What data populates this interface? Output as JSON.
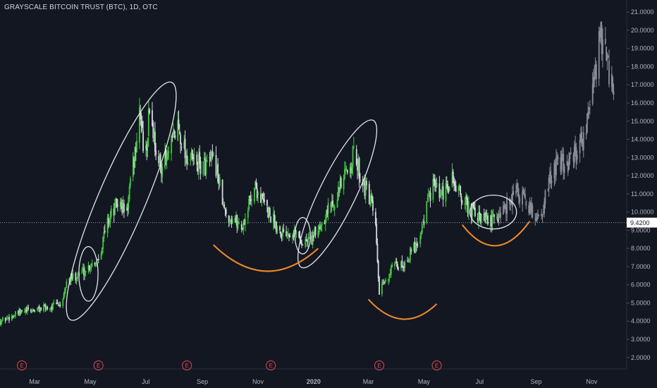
{
  "title": "GRAYSCALE BITCOIN TRUST (BTC), 1D, OTC",
  "chart_data": {
    "type": "candlestick",
    "symbol": "GRAYSCALE BITCOIN TRUST (BTC)",
    "interval": "1D",
    "exchange": "OTC",
    "ylim": [
      1.2,
      21.6
    ],
    "y_ticks": [
      {
        "value": 2,
        "label": "2.0000"
      },
      {
        "value": 3,
        "label": "3.0000"
      },
      {
        "value": 4,
        "label": "4.0000"
      },
      {
        "value": 5,
        "label": "5.0000"
      },
      {
        "value": 6,
        "label": "6.0000"
      },
      {
        "value": 7,
        "label": "7.0000"
      },
      {
        "value": 8,
        "label": "8.0000"
      },
      {
        "value": 9,
        "label": "9.0000"
      },
      {
        "value": 10,
        "label": "10.0000"
      },
      {
        "value": 11,
        "label": "11.0000"
      },
      {
        "value": 12,
        "label": "12.0000"
      },
      {
        "value": 13,
        "label": "13.0000"
      },
      {
        "value": 14,
        "label": "14.0000"
      },
      {
        "value": 15,
        "label": "15.0000"
      },
      {
        "value": 16,
        "label": "16.0000"
      },
      {
        "value": 17,
        "label": "17.0000"
      },
      {
        "value": 18,
        "label": "18.0000"
      },
      {
        "value": 19,
        "label": "19.0000"
      },
      {
        "value": 20,
        "label": "20.0000"
      },
      {
        "value": 21,
        "label": "21.0000"
      }
    ],
    "x_ticks": [
      {
        "label": "Mar",
        "date": "2019-03-01"
      },
      {
        "label": "May",
        "date": "2019-05-01"
      },
      {
        "label": "Jul",
        "date": "2019-07-01"
      },
      {
        "label": "Sep",
        "date": "2019-09-01"
      },
      {
        "label": "Nov",
        "date": "2019-11-01"
      },
      {
        "label": "2020",
        "date": "2020-01-01"
      },
      {
        "label": "Mar",
        "date": "2020-03-01"
      },
      {
        "label": "May",
        "date": "2020-05-01"
      },
      {
        "label": "Jul",
        "date": "2020-07-01"
      },
      {
        "label": "Sep",
        "date": "2020-09-01"
      },
      {
        "label": "Nov",
        "date": "2020-11-01"
      }
    ],
    "current_price": {
      "value": 9.42,
      "label": "9.4200"
    },
    "earnings_markers": [
      {
        "label": "E",
        "date": "2019-02-15"
      },
      {
        "label": "E",
        "date": "2019-05-10"
      },
      {
        "label": "E",
        "date": "2019-08-15"
      },
      {
        "label": "E",
        "date": "2019-11-15"
      },
      {
        "label": "E",
        "date": "2020-03-13"
      },
      {
        "label": "E",
        "date": "2020-05-15"
      }
    ],
    "price_path": [
      {
        "date": "2019-01-22",
        "price": 4.0
      },
      {
        "date": "2019-02-15",
        "price": 4.5
      },
      {
        "date": "2019-03-20",
        "price": 4.8
      },
      {
        "date": "2019-04-01",
        "price": 5.0
      },
      {
        "date": "2019-04-05",
        "price": 6.2
      },
      {
        "date": "2019-04-25",
        "price": 6.8
      },
      {
        "date": "2019-05-10",
        "price": 7.5
      },
      {
        "date": "2019-05-20",
        "price": 9.5
      },
      {
        "date": "2019-05-31",
        "price": 10.5
      },
      {
        "date": "2019-06-10",
        "price": 10.0
      },
      {
        "date": "2019-06-25",
        "price": 15.5
      },
      {
        "date": "2019-06-30",
        "price": 12.5
      },
      {
        "date": "2019-07-05",
        "price": 15.8
      },
      {
        "date": "2019-07-15",
        "price": 12.5
      },
      {
        "date": "2019-07-25",
        "price": 13.0
      },
      {
        "date": "2019-08-05",
        "price": 14.8
      },
      {
        "date": "2019-08-15",
        "price": 13.0
      },
      {
        "date": "2019-09-01",
        "price": 12.5
      },
      {
        "date": "2019-09-15",
        "price": 12.8
      },
      {
        "date": "2019-09-25",
        "price": 10.0
      },
      {
        "date": "2019-10-15",
        "price": 9.2
      },
      {
        "date": "2019-10-28",
        "price": 11.5
      },
      {
        "date": "2019-11-10",
        "price": 10.2
      },
      {
        "date": "2019-11-25",
        "price": 9.0
      },
      {
        "date": "2019-12-10",
        "price": 9.0
      },
      {
        "date": "2019-12-20",
        "price": 8.3
      },
      {
        "date": "2020-01-01",
        "price": 8.6
      },
      {
        "date": "2020-01-15",
        "price": 10.0
      },
      {
        "date": "2020-02-01",
        "price": 11.5
      },
      {
        "date": "2020-02-14",
        "price": 13.2
      },
      {
        "date": "2020-02-25",
        "price": 11.5
      },
      {
        "date": "2020-03-05",
        "price": 10.3
      },
      {
        "date": "2020-03-09",
        "price": 9.0
      },
      {
        "date": "2020-03-13",
        "price": 5.5
      },
      {
        "date": "2020-03-25",
        "price": 6.8
      },
      {
        "date": "2020-04-10",
        "price": 7.2
      },
      {
        "date": "2020-04-25",
        "price": 8.5
      },
      {
        "date": "2020-05-10",
        "price": 11.5
      },
      {
        "date": "2020-05-20",
        "price": 10.8
      },
      {
        "date": "2020-06-01",
        "price": 11.8
      },
      {
        "date": "2020-06-15",
        "price": 10.5
      },
      {
        "date": "2020-07-01",
        "price": 9.6
      },
      {
        "date": "2020-07-15",
        "price": 9.5
      },
      {
        "date": "2020-07-25",
        "price": 10.0
      },
      {
        "date": "2020-08-10",
        "price": 11.2
      },
      {
        "date": "2020-08-25",
        "price": 10.2
      },
      {
        "date": "2020-09-05",
        "price": 9.6
      },
      {
        "date": "2020-09-20",
        "price": 12.5
      },
      {
        "date": "2020-10-10",
        "price": 12.8
      },
      {
        "date": "2020-10-25",
        "price": 14.5
      },
      {
        "date": "2020-11-05",
        "price": 17.5
      },
      {
        "date": "2020-11-10",
        "price": 20.0
      },
      {
        "date": "2020-11-20",
        "price": 17.5
      },
      {
        "date": "2020-11-25",
        "price": 16.5
      }
    ],
    "highlighted_segments": [
      {
        "from": "2019-01-22",
        "to": "2020-07-22",
        "colors": {
          "up": "#3ec83e",
          "down": "#d5d8dd"
        }
      },
      {
        "from": "2020-07-22",
        "to": "2020-11-30",
        "colors": {
          "up": "#8a8d94",
          "down": "#8a8d94"
        }
      }
    ],
    "annotations": {
      "ellipses": [
        {
          "center_date": "2019-04-29",
          "center_price": 6.6,
          "rx_days": 10.5,
          "ry_price": 1.5,
          "angle": 0
        },
        {
          "center_date": "2019-06-04",
          "center_price": 10.6,
          "rx_days": 26,
          "ry_price": 7.1,
          "angle": 23
        },
        {
          "center_date": "2019-12-20",
          "center_price": 8.7,
          "rx_days": 8.5,
          "ry_price": 1.0,
          "angle": 0
        },
        {
          "center_date": "2020-01-27",
          "center_price": 11.0,
          "rx_days": 20,
          "ry_price": 4.5,
          "angle": 26
        },
        {
          "center_date": "2020-07-16",
          "center_price": 10.0,
          "rx_days": 25.5,
          "ry_price": 0.93,
          "angle": 0
        }
      ],
      "arcs": [
        {
          "from_date": "2019-09-13",
          "from_price": 8.2,
          "to_date": "2020-01-06",
          "to_price": 8.0,
          "depth_price": 1.3
        },
        {
          "from_date": "2020-03-01",
          "from_price": 5.2,
          "to_date": "2020-05-15",
          "to_price": 4.95,
          "depth_price": 0.9
        },
        {
          "from_date": "2020-06-12",
          "from_price": 9.3,
          "to_date": "2020-08-25",
          "to_price": 9.5,
          "depth_price": 1.2
        }
      ]
    },
    "colors": {
      "background": "#131722",
      "up": "#3ec83e",
      "down": "#d5d8dd",
      "projected": "#8a8d94",
      "annotation_ellipse": "#e3e5ea",
      "annotation_arc": "#f08a25",
      "axis_text": "#b2b5be",
      "price_tag_bg": "#ffffff",
      "price_tag_text": "#131722",
      "earnings": "#e1474a"
    }
  }
}
